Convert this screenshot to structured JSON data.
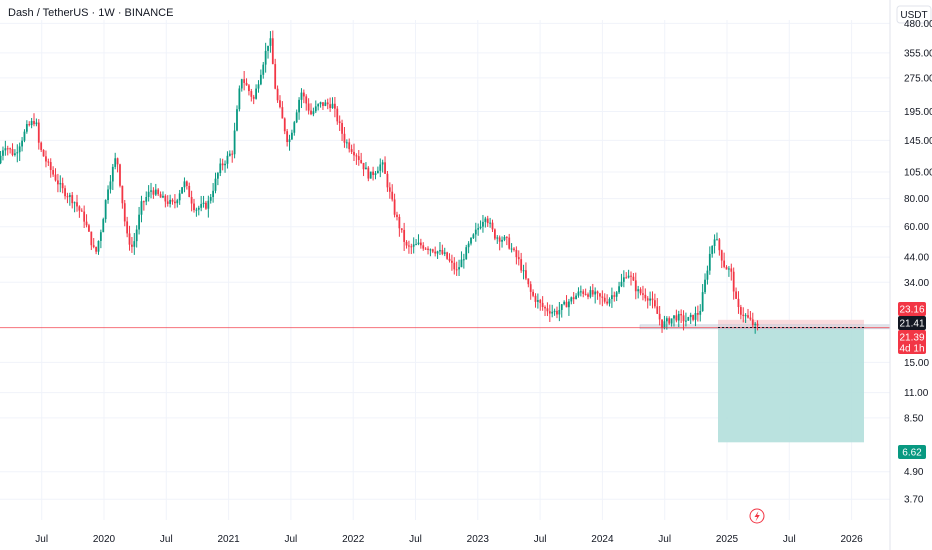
{
  "header": {
    "symbol_title": "Dash / TetherUS · 1W · BINANCE"
  },
  "price_axis": {
    "currency_button": "USDT",
    "ticks": [
      {
        "label": "480.00",
        "value": 480
      },
      {
        "label": "355.00",
        "value": 355
      },
      {
        "label": "275.00",
        "value": 275
      },
      {
        "label": "195.00",
        "value": 195
      },
      {
        "label": "145.00",
        "value": 145
      },
      {
        "label": "105.00",
        "value": 105
      },
      {
        "label": "80.00",
        "value": 80
      },
      {
        "label": "60.00",
        "value": 60
      },
      {
        "label": "44.00",
        "value": 44
      },
      {
        "label": "34.00",
        "value": 34
      },
      {
        "label": "15.00",
        "value": 15
      },
      {
        "label": "11.00",
        "value": 11
      },
      {
        "label": "8.50",
        "value": 8.5
      },
      {
        "label": "4.90",
        "value": 4.9
      },
      {
        "label": "3.70",
        "value": 3.7
      }
    ],
    "tags": [
      {
        "label": "23.16",
        "value": 23.16,
        "color": "#f23645",
        "sub": ""
      },
      {
        "label": "21.41",
        "value": 21.41,
        "color": "#131722",
        "sub": ""
      },
      {
        "label": "21.39",
        "value": 21.39,
        "color": "#f23645",
        "sub": "4d 1h"
      },
      {
        "label": "6.62",
        "value": 6.62,
        "color": "#089981",
        "sub": ""
      }
    ]
  },
  "time_axis": {
    "labels": [
      {
        "label": "Jul",
        "t": 2019.5
      },
      {
        "label": "2020",
        "t": 2020.0
      },
      {
        "label": "Jul",
        "t": 2020.5
      },
      {
        "label": "2021",
        "t": 2021.0
      },
      {
        "label": "Jul",
        "t": 2021.5
      },
      {
        "label": "2022",
        "t": 2022.0
      },
      {
        "label": "Jul",
        "t": 2022.5
      },
      {
        "label": "2023",
        "t": 2023.0
      },
      {
        "label": "Jul",
        "t": 2023.5
      },
      {
        "label": "2024",
        "t": 2024.0
      },
      {
        "label": "Jul",
        "t": 2024.5
      },
      {
        "label": "2025",
        "t": 2025.0
      },
      {
        "label": "Jul",
        "t": 2025.5
      },
      {
        "label": "2026",
        "t": 2026.0
      }
    ]
  },
  "colors": {
    "up": "#089981",
    "down": "#f23645",
    "profit_zone": "#b2dfdb",
    "stop_zone": "#f8d7da",
    "grid": "#f0f3fa",
    "current_line": "#f23645"
  },
  "chart_data": {
    "type": "candlestick",
    "title": "Dash / TetherUS · 1W · BINANCE",
    "scale": "log",
    "ylim": [
      3.4,
      560
    ],
    "xlim": [
      "2019-03",
      "2026-04"
    ],
    "path_points": [
      {
        "t": 2019.17,
        "p": 115
      },
      {
        "t": 2019.22,
        "p": 140
      },
      {
        "t": 2019.3,
        "p": 125
      },
      {
        "t": 2019.4,
        "p": 165
      },
      {
        "t": 2019.47,
        "p": 180
      },
      {
        "t": 2019.5,
        "p": 135
      },
      {
        "t": 2019.58,
        "p": 110
      },
      {
        "t": 2019.68,
        "p": 88
      },
      {
        "t": 2019.78,
        "p": 78
      },
      {
        "t": 2019.86,
        "p": 65
      },
      {
        "t": 2019.95,
        "p": 45
      },
      {
        "t": 2020.0,
        "p": 60
      },
      {
        "t": 2020.05,
        "p": 90
      },
      {
        "t": 2020.12,
        "p": 125
      },
      {
        "t": 2020.2,
        "p": 55
      },
      {
        "t": 2020.25,
        "p": 48
      },
      {
        "t": 2020.32,
        "p": 75
      },
      {
        "t": 2020.4,
        "p": 88
      },
      {
        "t": 2020.48,
        "p": 80
      },
      {
        "t": 2020.58,
        "p": 75
      },
      {
        "t": 2020.66,
        "p": 95
      },
      {
        "t": 2020.75,
        "p": 72
      },
      {
        "t": 2020.85,
        "p": 75
      },
      {
        "t": 2020.95,
        "p": 110
      },
      {
        "t": 2021.05,
        "p": 130
      },
      {
        "t": 2021.12,
        "p": 280
      },
      {
        "t": 2021.22,
        "p": 220
      },
      {
        "t": 2021.3,
        "p": 330
      },
      {
        "t": 2021.35,
        "p": 420
      },
      {
        "t": 2021.4,
        "p": 230
      },
      {
        "t": 2021.5,
        "p": 140
      },
      {
        "t": 2021.6,
        "p": 240
      },
      {
        "t": 2021.68,
        "p": 190
      },
      {
        "t": 2021.75,
        "p": 210
      },
      {
        "t": 2021.85,
        "p": 210
      },
      {
        "t": 2021.95,
        "p": 145
      },
      {
        "t": 2022.05,
        "p": 125
      },
      {
        "t": 2022.15,
        "p": 100
      },
      {
        "t": 2022.25,
        "p": 115
      },
      {
        "t": 2022.35,
        "p": 70
      },
      {
        "t": 2022.45,
        "p": 48
      },
      {
        "t": 2022.55,
        "p": 50
      },
      {
        "t": 2022.65,
        "p": 48
      },
      {
        "t": 2022.75,
        "p": 45
      },
      {
        "t": 2022.85,
        "p": 38
      },
      {
        "t": 2022.95,
        "p": 50
      },
      {
        "t": 2023.08,
        "p": 68
      },
      {
        "t": 2023.15,
        "p": 55
      },
      {
        "t": 2023.25,
        "p": 52
      },
      {
        "t": 2023.35,
        "p": 42
      },
      {
        "t": 2023.45,
        "p": 30
      },
      {
        "t": 2023.55,
        "p": 26
      },
      {
        "t": 2023.65,
        "p": 25
      },
      {
        "t": 2023.75,
        "p": 28
      },
      {
        "t": 2023.85,
        "p": 31
      },
      {
        "t": 2023.95,
        "p": 30
      },
      {
        "t": 2024.05,
        "p": 28
      },
      {
        "t": 2024.15,
        "p": 32
      },
      {
        "t": 2024.22,
        "p": 38
      },
      {
        "t": 2024.3,
        "p": 31
      },
      {
        "t": 2024.4,
        "p": 29
      },
      {
        "t": 2024.5,
        "p": 22
      },
      {
        "t": 2024.6,
        "p": 24
      },
      {
        "t": 2024.7,
        "p": 23
      },
      {
        "t": 2024.8,
        "p": 25
      },
      {
        "t": 2024.88,
        "p": 45
      },
      {
        "t": 2024.92,
        "p": 55
      },
      {
        "t": 2025.0,
        "p": 40
      },
      {
        "t": 2025.05,
        "p": 38
      },
      {
        "t": 2025.1,
        "p": 26
      },
      {
        "t": 2025.17,
        "p": 24
      },
      {
        "t": 2025.25,
        "p": 21.39
      }
    ],
    "current_price": 21.39,
    "position": {
      "entry": 21.41,
      "stop": 23.16,
      "target": 6.62
    }
  }
}
